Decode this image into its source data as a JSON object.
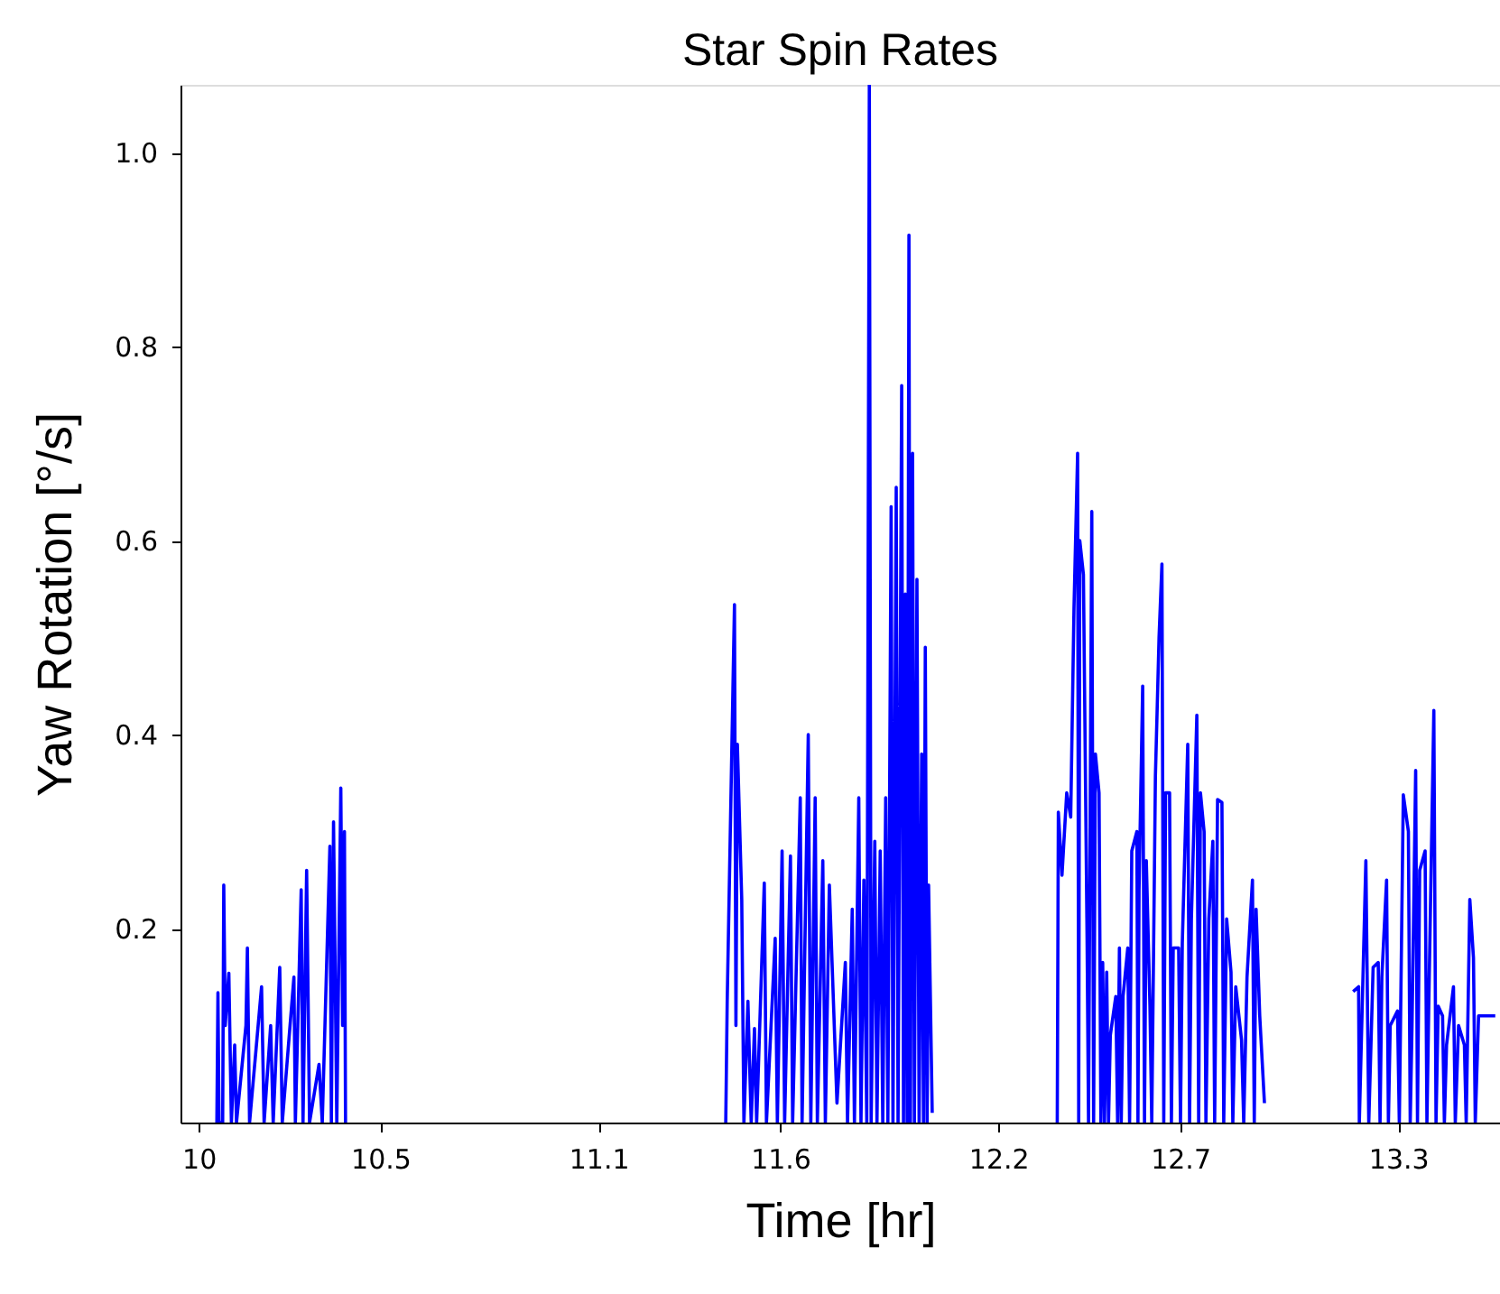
{
  "chart_data": {
    "type": "line",
    "title": "Star Spin Rates",
    "xlabel": "Time [hr]",
    "ylabel": "Yaw Rotation [°/s]",
    "xlim": [
      9.95,
      13.58
    ],
    "ylim": [
      0,
      1.07
    ],
    "xticks": [
      10,
      10.5,
      11.1,
      11.6,
      12.2,
      12.7,
      13.3
    ],
    "yticks": [
      0.2,
      0.4,
      0.6,
      0.8,
      {
        "value": 1.0,
        "label": "1.0"
      }
    ],
    "line_style": "solid",
    "series": [
      {
        "color": "#0000ff",
        "x": [
          10.05,
          10.053,
          10.056,
          10.066,
          10.069,
          10.073,
          10.083,
          10.09,
          10.099,
          10.104,
          10.13,
          10.134,
          10.14,
          10.173,
          10.18,
          10.198,
          10.205,
          10.223,
          10.23,
          10.262,
          10.266,
          10.282,
          10.287,
          10.297,
          10.305,
          10.331,
          10.34,
          10.361,
          10.365,
          10.371,
          10.38,
          10.391,
          10.396,
          10.401,
          10.404,
          10.9,
          11.45,
          11.454,
          11.474,
          11.478,
          11.482,
          11.494,
          11.5,
          11.511,
          11.52,
          11.529,
          11.535,
          11.556,
          11.562,
          11.586,
          11.592,
          11.605,
          11.612,
          11.628,
          11.634,
          11.655,
          11.66,
          11.677,
          11.684,
          11.696,
          11.702,
          11.717,
          11.724,
          11.735,
          11.756,
          11.779,
          11.785,
          11.798,
          11.804,
          11.816,
          11.822,
          11.83,
          11.838,
          11.845,
          11.85,
          11.86,
          11.866,
          11.875,
          11.882,
          11.89,
          11.896,
          11.905,
          11.91,
          11.919,
          11.924,
          11.934,
          11.939,
          11.944,
          11.949,
          11.954,
          11.958,
          11.964,
          11.969,
          11.976,
          11.982,
          11.989,
          11.994,
          11.999,
          12.004,
          12.008,
          12.018,
          12.2,
          12.362,
          12.365,
          12.375,
          12.388,
          12.399,
          12.408,
          12.418,
          12.421,
          12.424,
          12.434,
          12.444,
          12.448,
          12.457,
          12.462,
          12.467,
          12.477,
          12.482,
          12.487,
          12.492,
          12.498,
          12.503,
          12.508,
          12.523,
          12.528,
          12.533,
          12.538,
          12.543,
          12.556,
          12.561,
          12.567,
          12.581,
          12.584,
          12.587,
          12.597,
          12.602,
          12.607,
          12.617,
          12.622,
          12.632,
          12.642,
          12.65,
          12.655,
          12.66,
          12.671,
          12.676,
          12.681,
          12.696,
          12.701,
          12.706,
          12.721,
          12.726,
          12.731,
          12.746,
          12.751,
          12.756,
          12.766,
          12.771,
          12.779,
          12.79,
          12.795,
          12.803,
          12.815,
          12.82,
          12.828,
          12.84,
          12.845,
          12.853,
          12.869,
          12.875,
          12.884,
          12.899,
          12.904,
          12.909,
          12.919,
          12.932,
          13.05,
          13.176,
          13.191,
          13.193,
          13.211,
          13.219,
          13.231,
          13.245,
          13.25,
          13.255,
          13.268,
          13.273,
          13.278,
          13.298,
          13.303,
          13.314,
          13.328,
          13.333,
          13.338,
          13.348,
          13.353,
          13.359,
          13.374,
          13.379,
          13.384,
          13.398,
          13.404,
          13.41,
          13.422,
          13.427,
          13.433,
          13.452,
          13.457,
          13.466,
          13.482,
          13.487,
          13.497,
          13.507,
          13.512,
          13.521,
          13.567
        ],
        "values": [
          0,
          0.134,
          0,
          0,
          0.245,
          0.1,
          0.154,
          0,
          0.08,
          0,
          0.1,
          0.18,
          0,
          0.14,
          0,
          0.1,
          0,
          0.16,
          0,
          0.15,
          0,
          0.24,
          0,
          0.26,
          0,
          0.06,
          0,
          0.285,
          0,
          0.31,
          0,
          0.345,
          0.1,
          0.3,
          0,
          null,
          0,
          0.125,
          0.534,
          0.1,
          0.39,
          0.23,
          0,
          0.125,
          0,
          0.097,
          0,
          0.247,
          0,
          0.19,
          0,
          0.28,
          0,
          0.275,
          0,
          0.335,
          0,
          0.4,
          0,
          0.335,
          0,
          0.27,
          0,
          0.245,
          0.02,
          0.165,
          0,
          0.22,
          0,
          0.335,
          0,
          0.25,
          0,
          1.07,
          0,
          0.29,
          0,
          0.28,
          0,
          0.335,
          0,
          0.635,
          0,
          0.655,
          0,
          0.76,
          0,
          0.545,
          0,
          0.915,
          0,
          0.69,
          0,
          0.56,
          0,
          0.38,
          0,
          0.49,
          0,
          0.245,
          0.01,
          null,
          0,
          0.32,
          0.255,
          0.34,
          0.315,
          0.53,
          0.69,
          0,
          0.6,
          0.565,
          0.19,
          0,
          0.63,
          0,
          0.38,
          0.34,
          0,
          0.165,
          0,
          0.155,
          0,
          0.09,
          0.13,
          0,
          0.18,
          0,
          0.13,
          0.18,
          0,
          0.28,
          0.3,
          0,
          0.24,
          0.45,
          0,
          0.27,
          0.12,
          0,
          0.357,
          0.5,
          0.576,
          0,
          0.34,
          0.34,
          0,
          0.18,
          0.18,
          0,
          0.185,
          0.39,
          0,
          0.21,
          0.42,
          0,
          0.34,
          0.3,
          0,
          0.21,
          0.29,
          0,
          0.333,
          0.33,
          0,
          0.21,
          0.155,
          0,
          0.14,
          0.085,
          0,
          0.15,
          0.25,
          0,
          0.22,
          0.11,
          0.02,
          null,
          0.135,
          0.14,
          0,
          0.27,
          0,
          0.16,
          0.165,
          0,
          0.15,
          0.25,
          0,
          0.1,
          0.115,
          0,
          0.338,
          0.3,
          0,
          0.1,
          0.363,
          0,
          0.26,
          0.28,
          0,
          0.12,
          0.425,
          0,
          0.12,
          0.11,
          0,
          0.08,
          0.14,
          0,
          0.1,
          0.08,
          0,
          0.23,
          0.17,
          0,
          0.11,
          0.11
        ]
      }
    ]
  }
}
